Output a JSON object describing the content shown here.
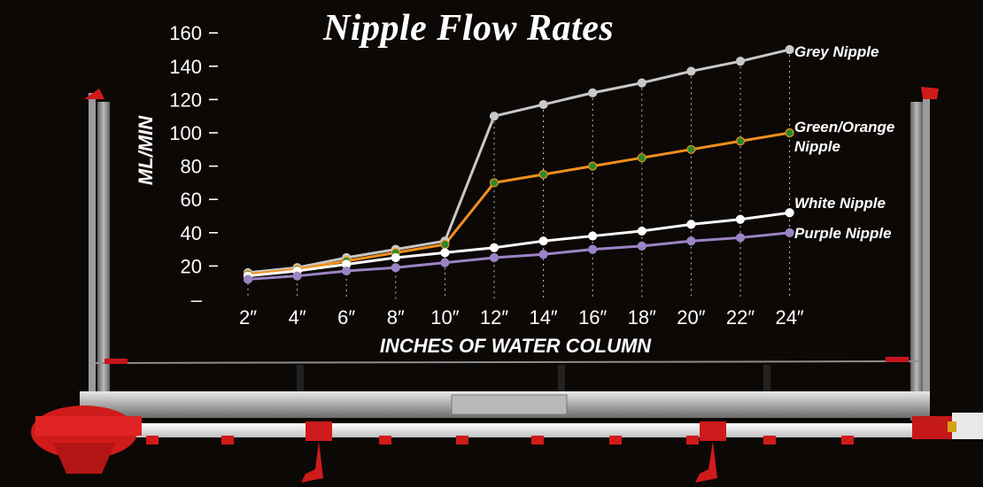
{
  "chart_data": {
    "type": "line",
    "title": "Nipple Flow Rates",
    "xlabel": "INCHES OF WATER COLUMN",
    "ylabel": "ML/MIN",
    "x": [
      "2″",
      "4″",
      "6″",
      "8″",
      "10″",
      "12″",
      "14″",
      "16″",
      "18″",
      "20″",
      "22″",
      "24″"
    ],
    "yticks": [
      "–",
      "20",
      "40",
      "60",
      "80",
      "100",
      "120",
      "140",
      "160"
    ],
    "ylim": [
      0,
      160
    ],
    "series": [
      {
        "name": "Grey Nipple",
        "color": "#c8c8c8",
        "marker": "#c8c8c8",
        "values": [
          16,
          19,
          25,
          30,
          35,
          110,
          117,
          124,
          130,
          137,
          143,
          150
        ]
      },
      {
        "name": "Green/Orange Nipple",
        "color": "#f0901e",
        "marker": "#2a8a2a",
        "values": [
          15,
          18,
          23,
          28,
          33,
          70,
          75,
          80,
          85,
          90,
          95,
          100
        ]
      },
      {
        "name": "White Nipple",
        "color": "#ffffff",
        "marker": "#ffffff",
        "values": [
          14,
          17,
          21,
          25,
          28,
          31,
          35,
          38,
          41,
          45,
          48,
          52
        ]
      },
      {
        "name": "Purple Nipple",
        "color": "#9c84c4",
        "marker": "#9c84c4",
        "values": [
          12,
          14,
          17,
          19,
          22,
          25,
          27,
          30,
          32,
          35,
          37,
          40
        ]
      }
    ]
  }
}
